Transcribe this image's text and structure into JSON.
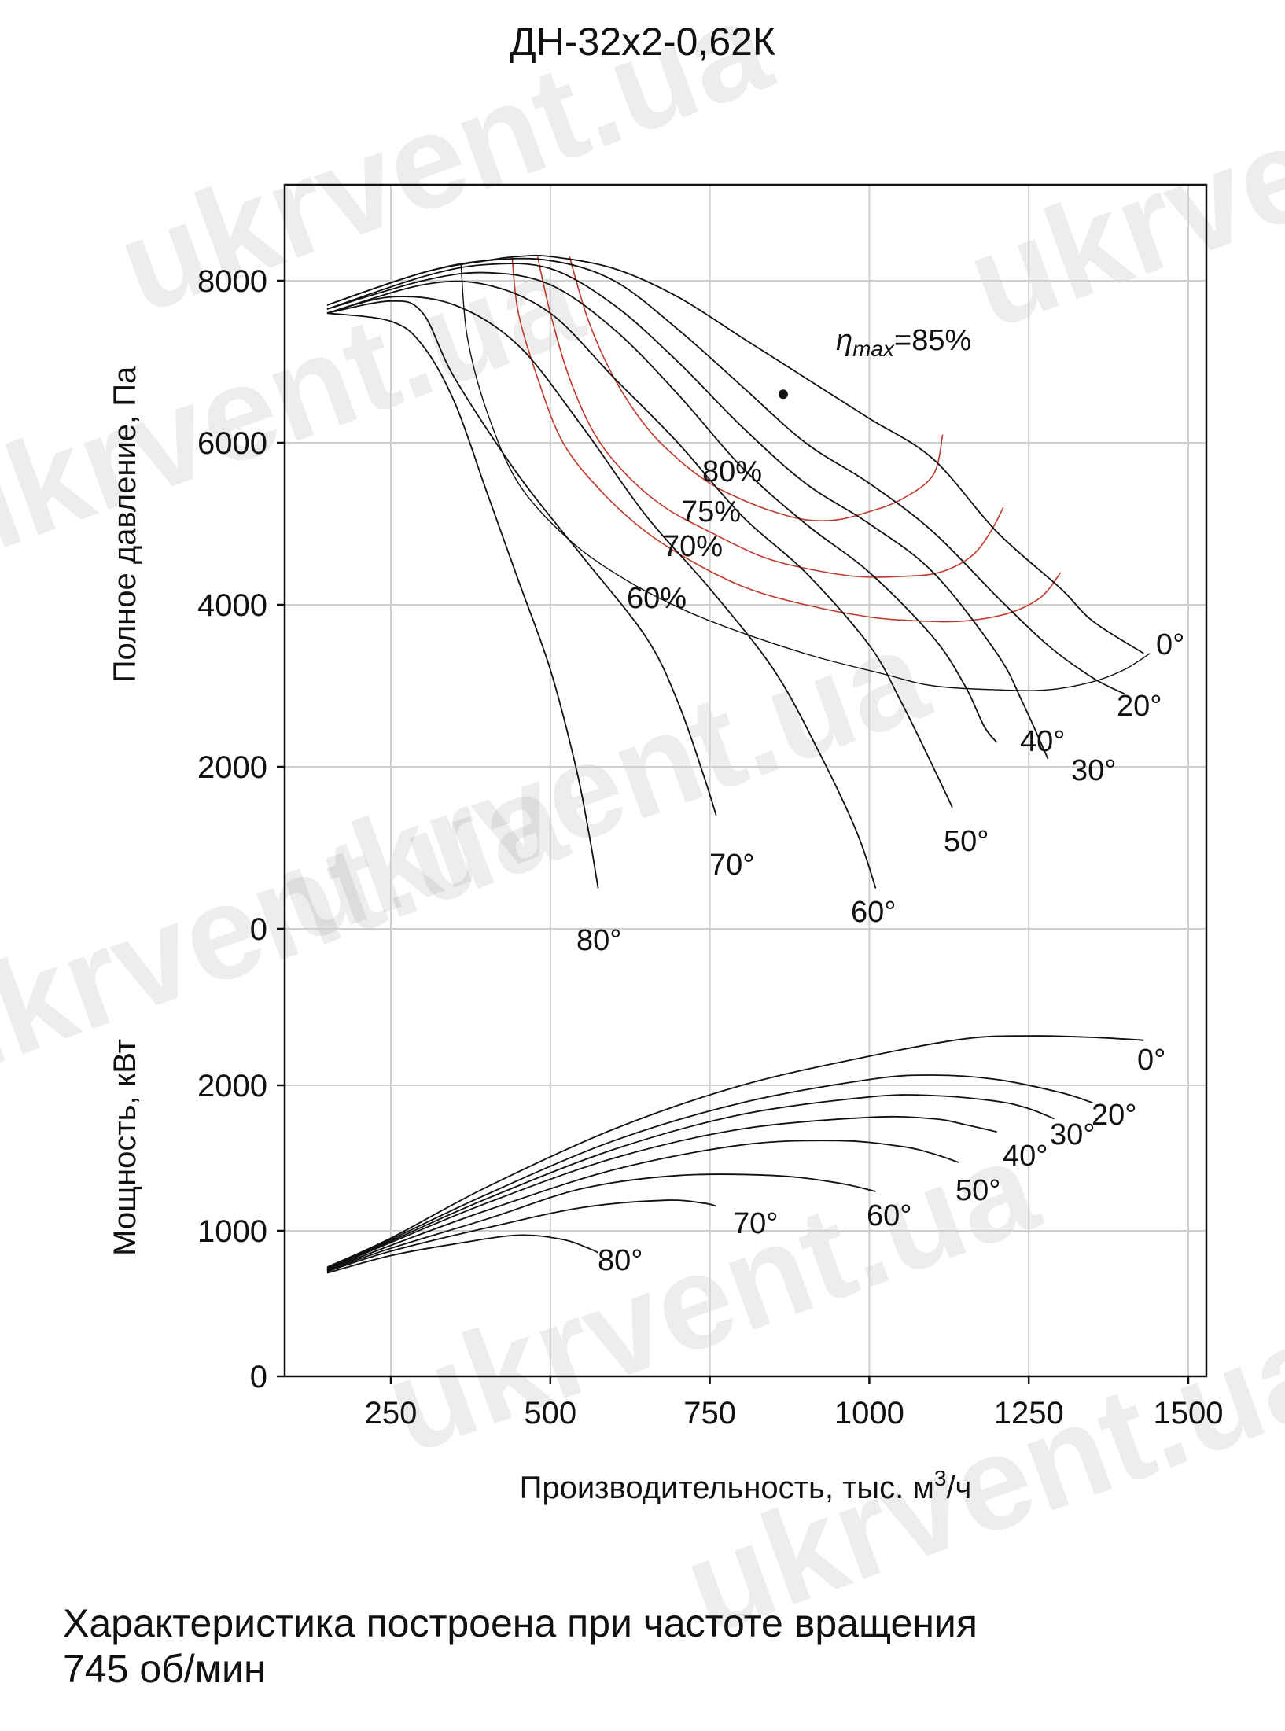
{
  "title": "ДН-32х2-0,62К",
  "note_line1": "Характеристика построена при частоте вращения",
  "note_line2": "745 об/мин",
  "watermark": "ukrvent.ua",
  "chart_data": [
    {
      "type": "line",
      "panel": "pressure",
      "ylabel": "Полное давление, Па",
      "xlabel": "",
      "xlim": [
        70,
        1510
      ],
      "ylim": [
        0,
        8000
      ],
      "yticks": [
        "0",
        "2000",
        "4000",
        "6000",
        "8000"
      ],
      "grid": true,
      "series": [
        {
          "name": "0°",
          "x": [
            150,
            300,
            400,
            450,
            500,
            600,
            700,
            800,
            900,
            1000,
            1100,
            1200,
            1300,
            1350,
            1430
          ],
          "y": [
            7700,
            8100,
            8250,
            8300,
            8300,
            8150,
            7800,
            7300,
            6800,
            6300,
            5800,
            4900,
            4200,
            3800,
            3400
          ]
        },
        {
          "name": "20°",
          "x": [
            150,
            300,
            400,
            500,
            600,
            700,
            800,
            900,
            1000,
            1100,
            1200,
            1280,
            1350,
            1400
          ],
          "y": [
            7700,
            8100,
            8250,
            8250,
            8000,
            7400,
            6700,
            6000,
            5500,
            4900,
            4100,
            3500,
            3100,
            2900
          ]
        },
        {
          "name": "30°",
          "x": [
            150,
            300,
            400,
            500,
            600,
            700,
            800,
            900,
            1000,
            1100,
            1200,
            1240,
            1280
          ],
          "y": [
            7650,
            8050,
            8200,
            8150,
            7700,
            7000,
            6200,
            5500,
            5000,
            4400,
            3400,
            2800,
            2100
          ]
        },
        {
          "name": "40°",
          "x": [
            150,
            300,
            400,
            500,
            600,
            700,
            800,
            900,
            1000,
            1100,
            1150,
            1180,
            1200
          ],
          "y": [
            7650,
            8000,
            8100,
            7950,
            7400,
            6600,
            5700,
            5000,
            4400,
            3600,
            3000,
            2500,
            2300
          ]
        },
        {
          "name": "50°",
          "x": [
            150,
            300,
            400,
            500,
            600,
            700,
            800,
            900,
            1000,
            1050,
            1100,
            1130
          ],
          "y": [
            7600,
            7950,
            7950,
            7600,
            6800,
            6000,
            5100,
            4400,
            3500,
            2800,
            2000,
            1500
          ]
        },
        {
          "name": "60°",
          "x": [
            150,
            250,
            350,
            450,
            550,
            650,
            750,
            850,
            920,
            980,
            1010
          ],
          "y": [
            7600,
            7800,
            7700,
            7200,
            6200,
            5100,
            4200,
            3200,
            2200,
            1200,
            500
          ]
        },
        {
          "name": "70°",
          "x": [
            150,
            250,
            300,
            350,
            450,
            550,
            650,
            700,
            740,
            760
          ],
          "y": [
            7600,
            7750,
            7600,
            6800,
            5600,
            4600,
            3600,
            2800,
            1900,
            1400
          ]
        },
        {
          "name": "80°",
          "x": [
            150,
            250,
            300,
            350,
            400,
            450,
            500,
            540,
            560,
            575
          ],
          "y": [
            7600,
            7500,
            7200,
            6500,
            5400,
            4300,
            3200,
            2000,
            1200,
            500
          ]
        }
      ],
      "efficiency_contours": [
        {
          "label": "80%",
          "x": [
            530,
            560,
            600,
            650,
            700,
            750,
            800,
            850,
            900,
            950,
            1000,
            1050,
            1100,
            1115
          ],
          "y": [
            8300,
            7500,
            6800,
            6200,
            5800,
            5500,
            5300,
            5150,
            5050,
            5050,
            5150,
            5300,
            5600,
            6100
          ]
        },
        {
          "label": "75%",
          "x": [
            480,
            500,
            530,
            570,
            620,
            680,
            750,
            830,
            900,
            980,
            1050,
            1110,
            1160,
            1190,
            1210
          ],
          "y": [
            8300,
            7600,
            6800,
            6100,
            5600,
            5200,
            4900,
            4600,
            4450,
            4350,
            4350,
            4400,
            4600,
            4900,
            5200
          ]
        },
        {
          "label": "70%",
          "x": [
            440,
            450,
            480,
            520,
            580,
            650,
            730,
            810,
            900,
            1000,
            1080,
            1150,
            1220,
            1270,
            1300
          ],
          "y": [
            8300,
            7600,
            6800,
            6000,
            5400,
            4900,
            4500,
            4200,
            4000,
            3850,
            3800,
            3800,
            3900,
            4100,
            4400
          ]
        },
        {
          "label": "60%",
          "x": [
            360,
            370,
            400,
            450,
            530,
            620,
            720,
            820,
            920,
            1020,
            1100,
            1200,
            1280,
            1350,
            1400,
            1440
          ],
          "y": [
            8200,
            7300,
            6400,
            5500,
            4800,
            4300,
            3900,
            3600,
            3350,
            3150,
            3000,
            2950,
            2950,
            3050,
            3200,
            3400
          ]
        }
      ],
      "efficiency_labels": [
        "80%",
        "75%",
        "70%",
        "60%"
      ],
      "eta_max_label": "=85%",
      "eta_symbol": "η",
      "eta_subscript": "max",
      "best_point": {
        "x": 865,
        "y": 6600
      }
    },
    {
      "type": "line",
      "panel": "power",
      "ylabel": "Мощность, кВт",
      "xlabel": "Производительность, тыс. м³/ч",
      "xlabel_main": "Производительность, тыс. м",
      "xlabel_sup": "3",
      "xlabel_tail": "/ч",
      "xlim": [
        70,
        1510
      ],
      "ylim": [
        0,
        2500
      ],
      "yticks": [
        "0",
        "1000",
        "2000"
      ],
      "xticks": [
        "250",
        "500",
        "750",
        "1000",
        "1250",
        "1500"
      ],
      "grid": true,
      "series": [
        {
          "name": "0°",
          "x": [
            150,
            250,
            400,
            600,
            800,
            1000,
            1150,
            1250,
            1350,
            1430
          ],
          "y": [
            750,
            950,
            1300,
            1700,
            2000,
            2200,
            2320,
            2340,
            2330,
            2310
          ]
        },
        {
          "name": "20°",
          "x": [
            150,
            250,
            400,
            600,
            800,
            1000,
            1100,
            1200,
            1300,
            1350
          ],
          "y": [
            740,
            940,
            1250,
            1620,
            1880,
            2040,
            2070,
            2040,
            1950,
            1880
          ]
        },
        {
          "name": "30°",
          "x": [
            150,
            250,
            400,
            600,
            800,
            1000,
            1100,
            1200,
            1250,
            1290
          ],
          "y": [
            740,
            930,
            1220,
            1560,
            1800,
            1920,
            1930,
            1890,
            1840,
            1770
          ]
        },
        {
          "name": "40°",
          "x": [
            150,
            250,
            400,
            600,
            800,
            1000,
            1100,
            1150,
            1200
          ],
          "y": [
            735,
            920,
            1190,
            1500,
            1700,
            1780,
            1770,
            1730,
            1680
          ]
        },
        {
          "name": "50°",
          "x": [
            150,
            250,
            400,
            600,
            800,
            950,
            1050,
            1100,
            1140
          ],
          "y": [
            730,
            900,
            1140,
            1420,
            1590,
            1620,
            1580,
            1530,
            1470
          ]
        },
        {
          "name": "60°",
          "x": [
            150,
            250,
            400,
            550,
            700,
            850,
            950,
            1010
          ],
          "y": [
            725,
            880,
            1080,
            1290,
            1380,
            1380,
            1330,
            1270
          ]
        },
        {
          "name": "70°",
          "x": [
            150,
            250,
            400,
            550,
            680,
            740,
            760
          ],
          "y": [
            720,
            860,
            1020,
            1160,
            1210,
            1190,
            1170
          ]
        },
        {
          "name": "80°",
          "x": [
            150,
            250,
            350,
            450,
            520,
            560,
            575
          ],
          "y": [
            710,
            830,
            910,
            970,
            940,
            880,
            850
          ]
        }
      ]
    }
  ]
}
